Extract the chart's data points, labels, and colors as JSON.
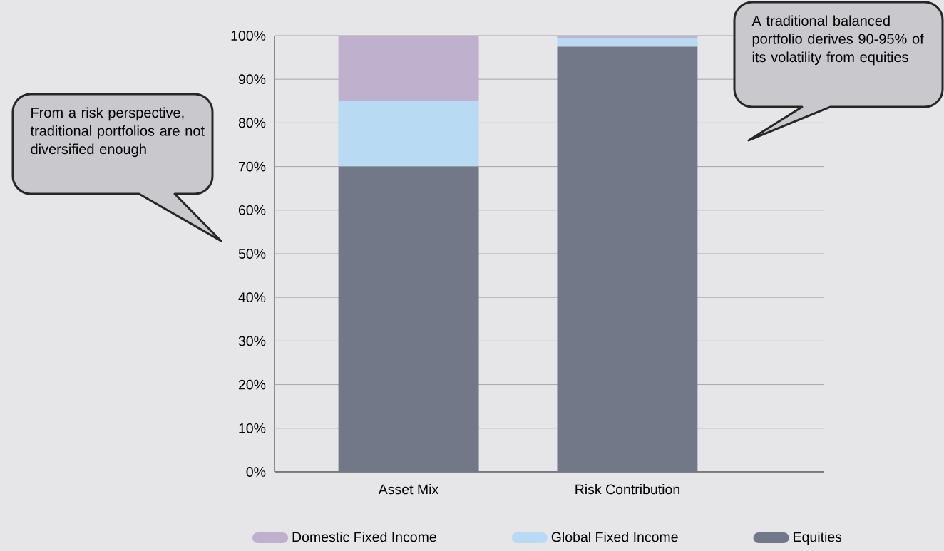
{
  "chart_data": {
    "type": "bar",
    "stacked": true,
    "categories": [
      "Asset Mix",
      "Risk Contribution"
    ],
    "series": [
      {
        "name": "Equities",
        "color": "#737889",
        "values": [
          70,
          97.5
        ]
      },
      {
        "name": "Global Fixed Income",
        "color": "#b8daf2",
        "values": [
          15,
          2
        ]
      },
      {
        "name": "Domestic Fixed Income",
        "color": "#bfb0cd",
        "values": [
          15,
          0.5
        ]
      }
    ],
    "ylim": [
      0,
      100
    ],
    "yticks": [
      {
        "value": 0,
        "label": "0%"
      },
      {
        "value": 10,
        "label": "10%"
      },
      {
        "value": 20,
        "label": "20%"
      },
      {
        "value": 30,
        "label": "30%"
      },
      {
        "value": 40,
        "label": "40%"
      },
      {
        "value": 50,
        "label": "50%"
      },
      {
        "value": 60,
        "label": "60%"
      },
      {
        "value": 70,
        "label": "70%"
      },
      {
        "value": 80,
        "label": "80%"
      },
      {
        "value": 90,
        "label": "90%"
      },
      {
        "value": 100,
        "label": "100%"
      }
    ],
    "grid": "y",
    "legend": "bottom",
    "annotations": [
      "From a risk perspective, traditional portfolios are not diversified enough",
      "A traditional balanced portfolio derives 90-95% of its volatility from equities"
    ]
  }
}
